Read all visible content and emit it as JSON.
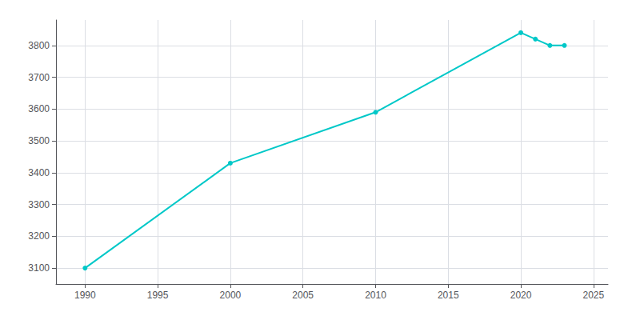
{
  "chart_data": {
    "type": "line",
    "x": [
      1990,
      2000,
      2010,
      2020,
      2021,
      2022,
      2023
    ],
    "values": [
      3100,
      3430,
      3590,
      3840,
      3820,
      3800,
      3800
    ],
    "color": "#00C8C8",
    "marker": "circle",
    "xlim": [
      1988,
      2026
    ],
    "ylim": [
      3050,
      3880
    ],
    "xticks": [
      1990,
      1995,
      2000,
      2005,
      2010,
      2015,
      2020,
      2025
    ],
    "yticks": [
      3100,
      3200,
      3300,
      3400,
      3500,
      3600,
      3700,
      3800
    ],
    "grid": true
  }
}
